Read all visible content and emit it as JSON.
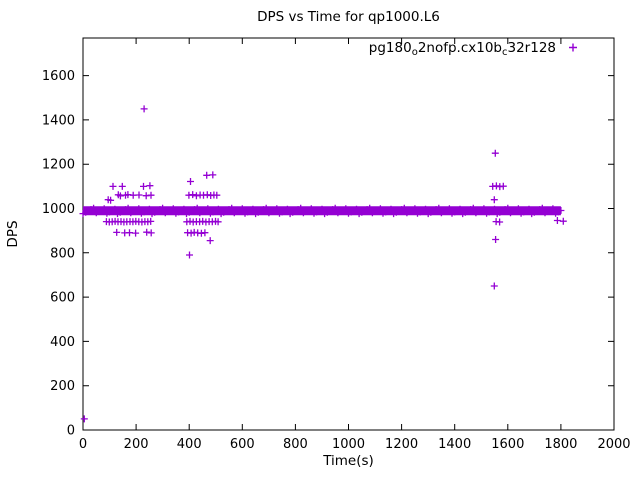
{
  "window": {
    "title": "DPS vs Time for qp1000.L6"
  },
  "colors": {
    "marker": "#9400d3",
    "axis": "#000000",
    "text": "#000000",
    "background": "#ffffff"
  },
  "chart_data": {
    "type": "scatter",
    "title": "DPS vs Time for qp1000.L6",
    "xlabel": "Time(s)",
    "ylabel": "DPS",
    "xlim": [
      0,
      2000
    ],
    "ylim": [
      0,
      1770
    ],
    "xticks": [
      0,
      200,
      400,
      600,
      800,
      1000,
      1200,
      1400,
      1600,
      1800,
      2000
    ],
    "yticks": [
      0,
      200,
      400,
      600,
      800,
      1000,
      1200,
      1400,
      1600
    ],
    "grid": false,
    "legend": {
      "position": "top-right",
      "label": "pg180_o2nofp.cx10b_c32r128",
      "label_parts": [
        {
          "t": "pg180"
        },
        {
          "s": "o"
        },
        {
          "t": "2nofp.cx10b"
        },
        {
          "s": "c"
        },
        {
          "t": "32r128"
        }
      ],
      "marker": "plus"
    },
    "marker": {
      "shape": "plus",
      "color": "#9400d3",
      "size": 3.5
    },
    "series": [
      {
        "name": "pg180_o2nofp.cx10b_c32r128",
        "dense_band": {
          "comment": "continuous thick band of overlapping plus markers",
          "x_start": 0,
          "x_end": 1800,
          "y": 990,
          "y_spread": 26
        },
        "points": [
          [
            5,
            50
          ],
          [
            113,
            1100
          ],
          [
            148,
            1100
          ],
          [
            228,
            1100
          ],
          [
            252,
            1103
          ],
          [
            230,
            1450
          ],
          [
            95,
            1040
          ],
          [
            104,
            1037
          ],
          [
            133,
            1062
          ],
          [
            141,
            1057
          ],
          [
            160,
            1060
          ],
          [
            169,
            1063
          ],
          [
            189,
            1060
          ],
          [
            211,
            1061
          ],
          [
            238,
            1058
          ],
          [
            256,
            1060
          ],
          [
            88,
            941
          ],
          [
            99,
            939
          ],
          [
            110,
            940
          ],
          [
            121,
            942
          ],
          [
            132,
            940
          ],
          [
            143,
            941
          ],
          [
            154,
            939
          ],
          [
            165,
            940
          ],
          [
            177,
            941
          ],
          [
            188,
            940
          ],
          [
            199,
            942
          ],
          [
            210,
            940
          ],
          [
            222,
            939
          ],
          [
            233,
            941
          ],
          [
            244,
            940
          ],
          [
            255,
            942
          ],
          [
            127,
            892
          ],
          [
            157,
            890
          ],
          [
            175,
            891
          ],
          [
            198,
            889
          ],
          [
            240,
            893
          ],
          [
            257,
            890
          ],
          [
            405,
            1122
          ],
          [
            466,
            1150
          ],
          [
            489,
            1152
          ],
          [
            399,
            1060
          ],
          [
            413,
            1063
          ],
          [
            427,
            1058
          ],
          [
            441,
            1061
          ],
          [
            454,
            1060
          ],
          [
            468,
            1062
          ],
          [
            481,
            1059
          ],
          [
            493,
            1061
          ],
          [
            504,
            1060
          ],
          [
            391,
            940
          ],
          [
            403,
            942
          ],
          [
            415,
            939
          ],
          [
            427,
            941
          ],
          [
            439,
            940
          ],
          [
            451,
            942
          ],
          [
            463,
            939
          ],
          [
            475,
            941
          ],
          [
            487,
            940
          ],
          [
            499,
            942
          ],
          [
            509,
            940
          ],
          [
            394,
            891
          ],
          [
            407,
            889
          ],
          [
            419,
            892
          ],
          [
            432,
            890
          ],
          [
            446,
            888
          ],
          [
            459,
            891
          ],
          [
            479,
            855
          ],
          [
            401,
            790
          ],
          [
            1553,
            1250
          ],
          [
            1543,
            1100
          ],
          [
            1557,
            1102
          ],
          [
            1570,
            1099
          ],
          [
            1583,
            1101
          ],
          [
            1549,
            1040
          ],
          [
            1556,
            941
          ],
          [
            1569,
            939
          ],
          [
            1554,
            860
          ],
          [
            1549,
            650
          ],
          [
            1787,
            946
          ],
          [
            1809,
            943
          ]
        ]
      }
    ]
  }
}
